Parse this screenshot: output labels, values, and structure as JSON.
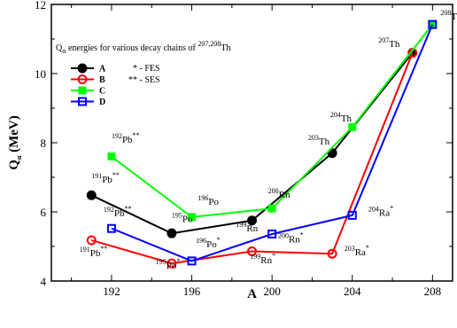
{
  "chart_data": {
    "type": "line",
    "xlabel": "A",
    "ylabel_main": "Q",
    "ylabel_sub": "α",
    "ylabel_unit": " (MeV)",
    "xlim": [
      189,
      209
    ],
    "ylim": [
      4,
      12
    ],
    "xticks": [
      192,
      196,
      200,
      204,
      208
    ],
    "yticks": [
      4,
      6,
      8,
      10,
      12
    ],
    "legend_title": {
      "q": "Q",
      "alpha": "α",
      "text": " energies for various decay chains of ",
      "sup": "207,208",
      "el": "Th"
    },
    "legend_position": "top-left",
    "notes": [
      "* - FES",
      "** - SES"
    ],
    "series": [
      {
        "name": "A",
        "color": "#000000",
        "marker": "circle-filled",
        "x": [
          191,
          195,
          199,
          203,
          207
        ],
        "y": [
          6.48,
          5.38,
          5.75,
          7.7,
          10.6
        ]
      },
      {
        "name": "B",
        "color": "#ff0000",
        "marker": "circle-open",
        "x": [
          191,
          195,
          199,
          203,
          207
        ],
        "y": [
          5.18,
          4.51,
          4.86,
          4.79,
          10.6
        ]
      },
      {
        "name": "C",
        "color": "#00ff00",
        "marker": "square-filled",
        "x": [
          192,
          196,
          200,
          204,
          208
        ],
        "y": [
          7.6,
          5.85,
          6.1,
          8.45,
          11.42
        ]
      },
      {
        "name": "D",
        "color": "#0000ff",
        "marker": "square-open",
        "x": [
          192,
          196,
          200,
          204,
          208
        ],
        "y": [
          5.52,
          4.58,
          5.36,
          5.9,
          11.42
        ]
      }
    ],
    "annotations": [
      {
        "sup": "192",
        "el": "Pb",
        "mark": "**",
        "x": 192.0,
        "y": 8.0
      },
      {
        "sup": "191",
        "el": "Pb",
        "mark": "**",
        "x": 191.0,
        "y": 6.85
      },
      {
        "sup": "192",
        "el": "Pb",
        "mark": "**",
        "x": 191.6,
        "y": 5.87
      },
      {
        "sup": "191",
        "el": "Pb",
        "mark": "**",
        "x": 190.4,
        "y": 4.72
      },
      {
        "sup": "195",
        "el": "Po",
        "mark": "",
        "x": 195.0,
        "y": 5.7
      },
      {
        "sup": "196",
        "el": "Po",
        "mark": "",
        "x": 196.3,
        "y": 6.2
      },
      {
        "sup": "196",
        "el": "Po",
        "mark": "*",
        "x": 196.2,
        "y": 4.98
      },
      {
        "sup": "195",
        "el": "Po",
        "mark": "*",
        "x": 194.2,
        "y": 4.36
      },
      {
        "sup": "200",
        "el": "Rn",
        "mark": "",
        "x": 199.8,
        "y": 6.41
      },
      {
        "sup": "199",
        "el": "Rn",
        "mark": "",
        "x": 198.2,
        "y": 5.43
      },
      {
        "sup": "200",
        "el": "Rn",
        "mark": "*",
        "x": 200.3,
        "y": 5.11
      },
      {
        "sup": "199",
        "el": "Rn",
        "mark": "*",
        "x": 198.9,
        "y": 4.51
      },
      {
        "sup": "203",
        "el": "Th",
        "mark": "",
        "x": 201.8,
        "y": 7.95
      },
      {
        "sup": "204",
        "el": "Th",
        "mark": "",
        "x": 202.9,
        "y": 8.62
      },
      {
        "sup": "204",
        "el": "Ra",
        "mark": "*",
        "x": 204.8,
        "y": 5.88
      },
      {
        "sup": "203",
        "el": "Ra",
        "mark": "*",
        "x": 203.6,
        "y": 4.74
      },
      {
        "sup": "207",
        "el": "Th",
        "mark": "",
        "x": 205.3,
        "y": 10.77
      },
      {
        "sup": "208",
        "el": "Th",
        "mark": "",
        "x": 208.4,
        "y": 11.57
      }
    ]
  }
}
